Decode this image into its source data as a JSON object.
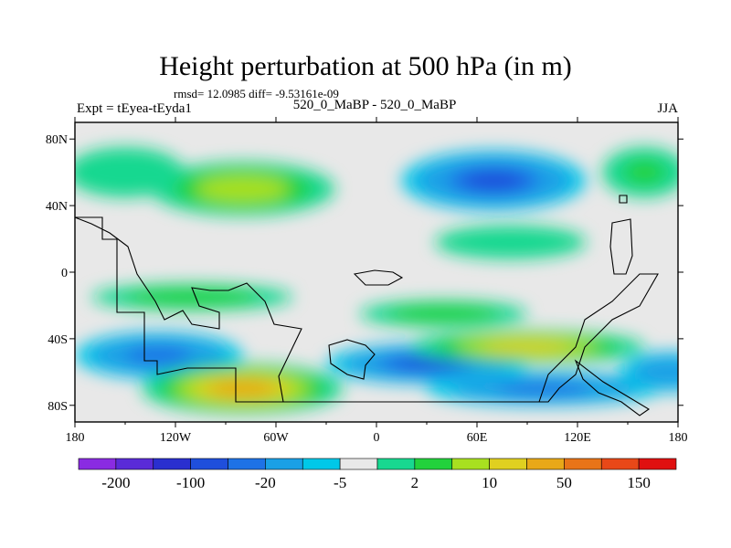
{
  "header": {
    "title": "Height perturbation at 500 hPa (in m)",
    "stats": "rmsd= 12.0985 diff= -9.53161e-09",
    "experiment": "Expt = tEyea-tEyda1",
    "center_label": "520_0_MaBP - 520_0_MaBP",
    "season": "JJA"
  },
  "colors": {
    "background_fill": "#e8e8e8",
    "coastline": "#000000",
    "palette": [
      "#8a2be2",
      "#5a2bd8",
      "#2a2fcf",
      "#1f4fdc",
      "#1e72e6",
      "#1aa0e6",
      "#00c8e8",
      "#e8e8e8",
      "#18d890",
      "#22d23c",
      "#a8e020",
      "#e0d020",
      "#e8a818",
      "#e87418",
      "#e84818",
      "#e01010"
    ]
  },
  "chart_data": {
    "type": "heatmap",
    "projection": "cylindrical-equidistant",
    "title": "Height perturbation at 500 hPa (in m)",
    "xlim": [
      -180,
      180
    ],
    "ylim": [
      -90,
      90
    ],
    "x_ticks": [
      {
        "value": -180,
        "label": "180"
      },
      {
        "value": -120,
        "label": "120W"
      },
      {
        "value": -60,
        "label": "60W"
      },
      {
        "value": 0,
        "label": "0"
      },
      {
        "value": 60,
        "label": "60E"
      },
      {
        "value": 120,
        "label": "120E"
      },
      {
        "value": 180,
        "label": "180"
      }
    ],
    "y_ticks": [
      {
        "value": 80,
        "label": "80N"
      },
      {
        "value": 40,
        "label": "40N"
      },
      {
        "value": 0,
        "label": "0"
      },
      {
        "value": -40,
        "label": "40S"
      },
      {
        "value": -80,
        "label": "80S"
      }
    ],
    "colorbar": {
      "orientation": "horizontal",
      "n_bins": 16,
      "labels": [
        "-200",
        "-100",
        "-20",
        "-5",
        "2",
        "10",
        "50",
        "150"
      ]
    },
    "anomaly_centers": [
      {
        "lon": -80,
        "lat": 50,
        "value": 12,
        "rx": 55,
        "ry": 16
      },
      {
        "lon": 70,
        "lat": 55,
        "value": -60,
        "rx": 55,
        "ry": 18
      },
      {
        "lon": 160,
        "lat": 60,
        "value": 5,
        "rx": 25,
        "ry": 15
      },
      {
        "lon": -150,
        "lat": 60,
        "value": 3,
        "rx": 35,
        "ry": 15
      },
      {
        "lon": 80,
        "lat": 18,
        "value": 3,
        "rx": 45,
        "ry": 10
      },
      {
        "lon": -110,
        "lat": -15,
        "value": 8,
        "rx": 60,
        "ry": 8
      },
      {
        "lon": 40,
        "lat": -25,
        "value": 7,
        "rx": 50,
        "ry": 8
      },
      {
        "lon": -130,
        "lat": -50,
        "value": -45,
        "rx": 50,
        "ry": 14
      },
      {
        "lon": -80,
        "lat": -70,
        "value": 60,
        "rx": 60,
        "ry": 15
      },
      {
        "lon": 30,
        "lat": -55,
        "value": -80,
        "rx": 60,
        "ry": 12
      },
      {
        "lon": 90,
        "lat": -45,
        "value": 25,
        "rx": 70,
        "ry": 10
      },
      {
        "lon": 100,
        "lat": -70,
        "value": -30,
        "rx": 70,
        "ry": 10
      },
      {
        "lon": 175,
        "lat": -60,
        "value": -15,
        "rx": 30,
        "ry": 12
      }
    ]
  }
}
